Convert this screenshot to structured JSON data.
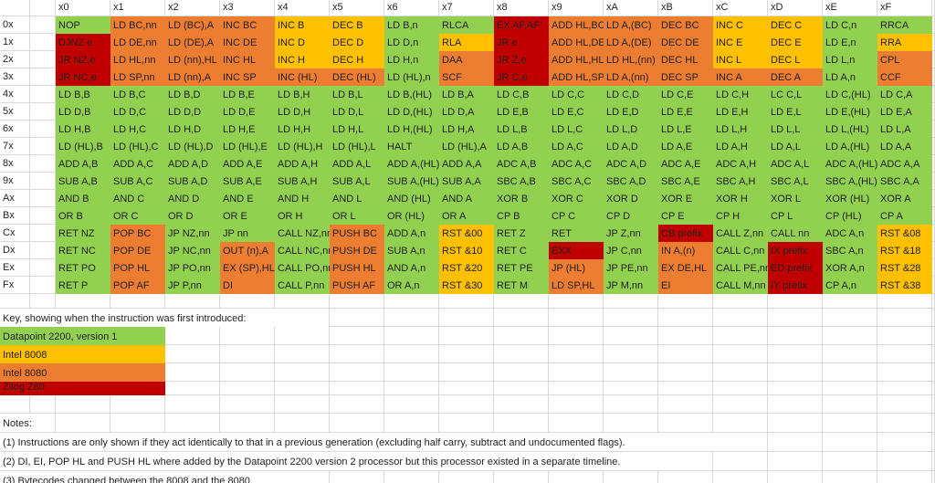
{
  "colors": {
    "g": "#92D050",
    "y": "#FFC000",
    "o": "#ED7D31",
    "r": "#C00000",
    "gridline": "#D9D9D9",
    "text": "#1F1F1F"
  },
  "table": {
    "col_headers": [
      "x0",
      "x1",
      "x2",
      "x3",
      "x4",
      "x5",
      "x6",
      "x7",
      "x8",
      "x9",
      "xA",
      "xB",
      "xC",
      "xD",
      "xE",
      "xF"
    ],
    "rows": [
      {
        "label": "0x",
        "cells": [
          [
            "NOP",
            "g"
          ],
          [
            "LD BC,nn",
            "o"
          ],
          [
            "LD (BC),A",
            "o"
          ],
          [
            "INC BC",
            "o"
          ],
          [
            "INC B",
            "y"
          ],
          [
            "DEC B",
            "y"
          ],
          [
            "LD B,n",
            "g"
          ],
          [
            "RLCA",
            "g"
          ],
          [
            "EX AF,AF'",
            "r"
          ],
          [
            "ADD HL,BC",
            "o"
          ],
          [
            "LD A,(BC)",
            "o"
          ],
          [
            "DEC BC",
            "o"
          ],
          [
            "INC C",
            "y"
          ],
          [
            "DEC C",
            "y"
          ],
          [
            "LD C,n",
            "g"
          ],
          [
            "RRCA",
            "g"
          ]
        ]
      },
      {
        "label": "1x",
        "cells": [
          [
            "DJNZ e",
            "r"
          ],
          [
            "LD DE,nn",
            "o"
          ],
          [
            "LD (DE),A",
            "o"
          ],
          [
            "INC DE",
            "o"
          ],
          [
            "INC D",
            "y"
          ],
          [
            "DEC D",
            "y"
          ],
          [
            "LD D,n",
            "g"
          ],
          [
            "RLA",
            "y"
          ],
          [
            "JR e",
            "r"
          ],
          [
            "ADD HL,DE",
            "o"
          ],
          [
            "LD A,(DE)",
            "o"
          ],
          [
            "DEC DE",
            "o"
          ],
          [
            "INC E",
            "y"
          ],
          [
            "DEC E",
            "y"
          ],
          [
            "LD E,n",
            "g"
          ],
          [
            "RRA",
            "y"
          ]
        ]
      },
      {
        "label": "2x",
        "cells": [
          [
            "JR NZ,e",
            "r"
          ],
          [
            "LD HL,nn",
            "o"
          ],
          [
            "LD (nn),HL",
            "o"
          ],
          [
            "INC HL",
            "o"
          ],
          [
            "INC H",
            "y"
          ],
          [
            "DEC H",
            "y"
          ],
          [
            "LD H,n",
            "g"
          ],
          [
            "DAA",
            "o"
          ],
          [
            "JR Z,e",
            "r"
          ],
          [
            "ADD HL,HL",
            "o"
          ],
          [
            "LD HL,(nn)",
            "o"
          ],
          [
            "DEC HL",
            "o"
          ],
          [
            "INC L",
            "y"
          ],
          [
            "DEC L",
            "y"
          ],
          [
            "LD L,n",
            "g"
          ],
          [
            "CPL",
            "o"
          ]
        ]
      },
      {
        "label": "3x",
        "cells": [
          [
            "JR NC,e",
            "r"
          ],
          [
            "LD SP,nn",
            "o"
          ],
          [
            "LD (nn),A",
            "o"
          ],
          [
            "INC SP",
            "o"
          ],
          [
            "INC (HL)",
            "o"
          ],
          [
            "DEC (HL)",
            "o"
          ],
          [
            "LD (HL),n",
            "g"
          ],
          [
            "SCF",
            "o"
          ],
          [
            "JR C,e",
            "r"
          ],
          [
            "ADD HL,SP",
            "o"
          ],
          [
            "LD A,(nn)",
            "o"
          ],
          [
            "DEC SP",
            "o"
          ],
          [
            "INC A",
            "o"
          ],
          [
            "DEC A",
            "o"
          ],
          [
            "LD A,n",
            "g"
          ],
          [
            "CCF",
            "o"
          ]
        ]
      },
      {
        "label": "4x",
        "cells": [
          [
            "LD B,B",
            "g"
          ],
          [
            "LD B,C",
            "g"
          ],
          [
            "LD B,D",
            "g"
          ],
          [
            "LD B,E",
            "g"
          ],
          [
            "LD B,H",
            "g"
          ],
          [
            "LD B,L",
            "g"
          ],
          [
            "LD B,(HL)",
            "g"
          ],
          [
            "LD B,A",
            "g"
          ],
          [
            "LD C,B",
            "g"
          ],
          [
            "LD C,C",
            "g"
          ],
          [
            "LD C,D",
            "g"
          ],
          [
            "LD C,E",
            "g"
          ],
          [
            "LD C,H",
            "g"
          ],
          [
            "LC C,L",
            "g"
          ],
          [
            "LD C,(HL)",
            "g"
          ],
          [
            "LD C,A",
            "g"
          ]
        ]
      },
      {
        "label": "5x",
        "cells": [
          [
            "LD D,B",
            "g"
          ],
          [
            "LD D,C",
            "g"
          ],
          [
            "LD D,D",
            "g"
          ],
          [
            "LD D,E",
            "g"
          ],
          [
            "LD D,H",
            "g"
          ],
          [
            "LD D,L",
            "g"
          ],
          [
            "LD D,(HL)",
            "g"
          ],
          [
            "LD D,A",
            "g"
          ],
          [
            "LD E,B",
            "g"
          ],
          [
            "LD E,C",
            "g"
          ],
          [
            "LD E,D",
            "g"
          ],
          [
            "LD E,E",
            "g"
          ],
          [
            "LD E,H",
            "g"
          ],
          [
            "LD E,L",
            "g"
          ],
          [
            "LD E,(HL)",
            "g"
          ],
          [
            "LD E,A",
            "g"
          ]
        ]
      },
      {
        "label": "6x",
        "cells": [
          [
            "LD H,B",
            "g"
          ],
          [
            "LD H,C",
            "g"
          ],
          [
            "LD H,D",
            "g"
          ],
          [
            "LD H,E",
            "g"
          ],
          [
            "LD H,H",
            "g"
          ],
          [
            "LD H,L",
            "g"
          ],
          [
            "LD H,(HL)",
            "g"
          ],
          [
            "LD H,A",
            "g"
          ],
          [
            "LD L,B",
            "g"
          ],
          [
            "LD L,C",
            "g"
          ],
          [
            "LD L,D",
            "g"
          ],
          [
            "LD L,E",
            "g"
          ],
          [
            "LD L,H",
            "g"
          ],
          [
            "LD L,L",
            "g"
          ],
          [
            "LD L,(HL)",
            "g"
          ],
          [
            "LD L,A",
            "g"
          ]
        ]
      },
      {
        "label": "7x",
        "cells": [
          [
            "LD (HL),B",
            "g"
          ],
          [
            "LD (HL),C",
            "g"
          ],
          [
            "LD (HL),D",
            "g"
          ],
          [
            "LD (HL),E",
            "g"
          ],
          [
            "LD (HL),H",
            "g"
          ],
          [
            "LD (HL),L",
            "g"
          ],
          [
            "HALT",
            "g"
          ],
          [
            "LD (HL),A",
            "g"
          ],
          [
            "LD A,B",
            "g"
          ],
          [
            "LD A,C",
            "g"
          ],
          [
            "LD A,D",
            "g"
          ],
          [
            "LD A,E",
            "g"
          ],
          [
            "LD A,H",
            "g"
          ],
          [
            "LD A,L",
            "g"
          ],
          [
            "LD A,(HL)",
            "g"
          ],
          [
            "LD A,A",
            "g"
          ]
        ]
      },
      {
        "label": "8x",
        "cells": [
          [
            "ADD A,B",
            "g"
          ],
          [
            "ADD A,C",
            "g"
          ],
          [
            "ADD A,D",
            "g"
          ],
          [
            "ADD A,E",
            "g"
          ],
          [
            "ADD A,H",
            "g"
          ],
          [
            "ADD A,L",
            "g"
          ],
          [
            "ADD A,(HL)",
            "g"
          ],
          [
            "ADD A,A",
            "g"
          ],
          [
            "ADC A,B",
            "g"
          ],
          [
            "ADC A,C",
            "g"
          ],
          [
            "ADC A,D",
            "g"
          ],
          [
            "ADC A,E",
            "g"
          ],
          [
            "ADC A,H",
            "g"
          ],
          [
            "ADC A,L",
            "g"
          ],
          [
            "ADC A,(HL)",
            "g"
          ],
          [
            "ADC A,A",
            "g"
          ]
        ]
      },
      {
        "label": "9x",
        "cells": [
          [
            "SUB A,B",
            "g"
          ],
          [
            "SUB A,C",
            "g"
          ],
          [
            "SUB A,D",
            "g"
          ],
          [
            "SUB A,E",
            "g"
          ],
          [
            "SUB A,H",
            "g"
          ],
          [
            "SUB A,L",
            "g"
          ],
          [
            "SUB A,(HL)",
            "g"
          ],
          [
            "SUB A,A",
            "g"
          ],
          [
            "SBC A,B",
            "g"
          ],
          [
            "SBC A,C",
            "g"
          ],
          [
            "SBC A,D",
            "g"
          ],
          [
            "SBC A,E",
            "g"
          ],
          [
            "SBC A,H",
            "g"
          ],
          [
            "SBC A,L",
            "g"
          ],
          [
            "SBC A,(HL)",
            "g"
          ],
          [
            "SBC A,A",
            "g"
          ]
        ]
      },
      {
        "label": "Ax",
        "cells": [
          [
            "AND B",
            "g"
          ],
          [
            "AND C",
            "g"
          ],
          [
            "AND D",
            "g"
          ],
          [
            "AND E",
            "g"
          ],
          [
            "AND H",
            "g"
          ],
          [
            "AND L",
            "g"
          ],
          [
            "AND (HL)",
            "g"
          ],
          [
            "AND A",
            "g"
          ],
          [
            "XOR B",
            "g"
          ],
          [
            "XOR C",
            "g"
          ],
          [
            "XOR D",
            "g"
          ],
          [
            "XOR E",
            "g"
          ],
          [
            "XOR H",
            "g"
          ],
          [
            "XOR L",
            "g"
          ],
          [
            "XOR (HL)",
            "g"
          ],
          [
            "XOR A",
            "g"
          ]
        ]
      },
      {
        "label": "Bx",
        "cells": [
          [
            "OR B",
            "g"
          ],
          [
            "OR C",
            "g"
          ],
          [
            "OR D",
            "g"
          ],
          [
            "OR E",
            "g"
          ],
          [
            "OR H",
            "g"
          ],
          [
            "OR L",
            "g"
          ],
          [
            "OR (HL)",
            "g"
          ],
          [
            "OR A",
            "g"
          ],
          [
            "CP B",
            "g"
          ],
          [
            "CP C",
            "g"
          ],
          [
            "CP D",
            "g"
          ],
          [
            "CP E",
            "g"
          ],
          [
            "CP H",
            "g"
          ],
          [
            "CP L",
            "g"
          ],
          [
            "CP (HL)",
            "g"
          ],
          [
            "CP A",
            "g"
          ]
        ]
      },
      {
        "label": "Cx",
        "cells": [
          [
            "RET NZ",
            "g"
          ],
          [
            "POP BC",
            "o"
          ],
          [
            "JP NZ,nn",
            "g"
          ],
          [
            "JP nn",
            "g"
          ],
          [
            "CALL NZ,nn",
            "g"
          ],
          [
            "PUSH BC",
            "o"
          ],
          [
            "ADD A,n",
            "g"
          ],
          [
            "RST &00",
            "y"
          ],
          [
            "RET Z",
            "g"
          ],
          [
            "RET",
            "g"
          ],
          [
            "JP Z,nn",
            "g"
          ],
          [
            "CB prefix",
            "r"
          ],
          [
            "CALL Z,nn",
            "g"
          ],
          [
            "CALL nn",
            "g"
          ],
          [
            "ADC A,n",
            "g"
          ],
          [
            "RST &08",
            "y"
          ]
        ]
      },
      {
        "label": "Dx",
        "cells": [
          [
            "RET NC",
            "g"
          ],
          [
            "POP DE",
            "o"
          ],
          [
            "JP NC,nn",
            "g"
          ],
          [
            "OUT (n),A",
            "o"
          ],
          [
            "CALL NC,nn",
            "g"
          ],
          [
            "PUSH DE",
            "o"
          ],
          [
            "SUB A,n",
            "g"
          ],
          [
            "RST &10",
            "y"
          ],
          [
            "RET C",
            "g"
          ],
          [
            "EXX",
            "r"
          ],
          [
            "JP C,nn",
            "g"
          ],
          [
            "IN A,(n)",
            "o"
          ],
          [
            "CALL C,nn",
            "g"
          ],
          [
            "IX prefix",
            "r"
          ],
          [
            "SBC A,n",
            "g"
          ],
          [
            "RST &18",
            "y"
          ]
        ]
      },
      {
        "label": "Ex",
        "cells": [
          [
            "RET PO",
            "g"
          ],
          [
            "POP HL",
            "o"
          ],
          [
            "JP PO,nn",
            "g"
          ],
          [
            "EX (SP),HL",
            "o"
          ],
          [
            "CALL PO,nn",
            "g"
          ],
          [
            "PUSH HL",
            "o"
          ],
          [
            "AND A,n",
            "g"
          ],
          [
            "RST &20",
            "y"
          ],
          [
            "RET PE",
            "g"
          ],
          [
            "JP (HL)",
            "o"
          ],
          [
            "JP PE,nn",
            "g"
          ],
          [
            "EX DE,HL",
            "o"
          ],
          [
            "CALL PE,nn",
            "g"
          ],
          [
            "ED prefix",
            "r"
          ],
          [
            "XOR A,n",
            "g"
          ],
          [
            "RST &28",
            "y"
          ]
        ]
      },
      {
        "label": "Fx",
        "cells": [
          [
            "RET P",
            "g"
          ],
          [
            "POP AF",
            "o"
          ],
          [
            "JP P,nn",
            "g"
          ],
          [
            "DI",
            "o"
          ],
          [
            "CALL P,nn",
            "g"
          ],
          [
            "PUSH AF",
            "o"
          ],
          [
            "OR A,n",
            "g"
          ],
          [
            "RST &30",
            "y"
          ],
          [
            "RET M",
            "g"
          ],
          [
            "LD SP,HL",
            "o"
          ],
          [
            "JP M,nn",
            "g"
          ],
          [
            "EI",
            "o"
          ],
          [
            "CALL M,nn",
            "g"
          ],
          [
            "IY prefix",
            "r"
          ],
          [
            "CP A,n",
            "g"
          ],
          [
            "RST &38",
            "y"
          ]
        ]
      }
    ]
  },
  "key": {
    "title": "Key, showing when the instruction was first introduced:",
    "items": [
      {
        "label": "Datapoint 2200, version 1",
        "color_key": "g"
      },
      {
        "label": "Intel 8008",
        "color_key": "y"
      },
      {
        "label": "Intel 8080",
        "color_key": "o"
      },
      {
        "label": "Zilog Z80",
        "color_key": "r"
      }
    ]
  },
  "notes": {
    "title": "Notes:",
    "lines": [
      "(1) Instructions are only shown if they act identically to that in a previous generation (excluding half carry, subtract and undocumented flags).",
      "(2) DI, EI, POP HL and PUSH HL where added by the Datapoint 2200 version 2 processor but this processor existed in a separate timeline.",
      "(3) Bytecodes changed between the 8008 and the 8080."
    ]
  }
}
